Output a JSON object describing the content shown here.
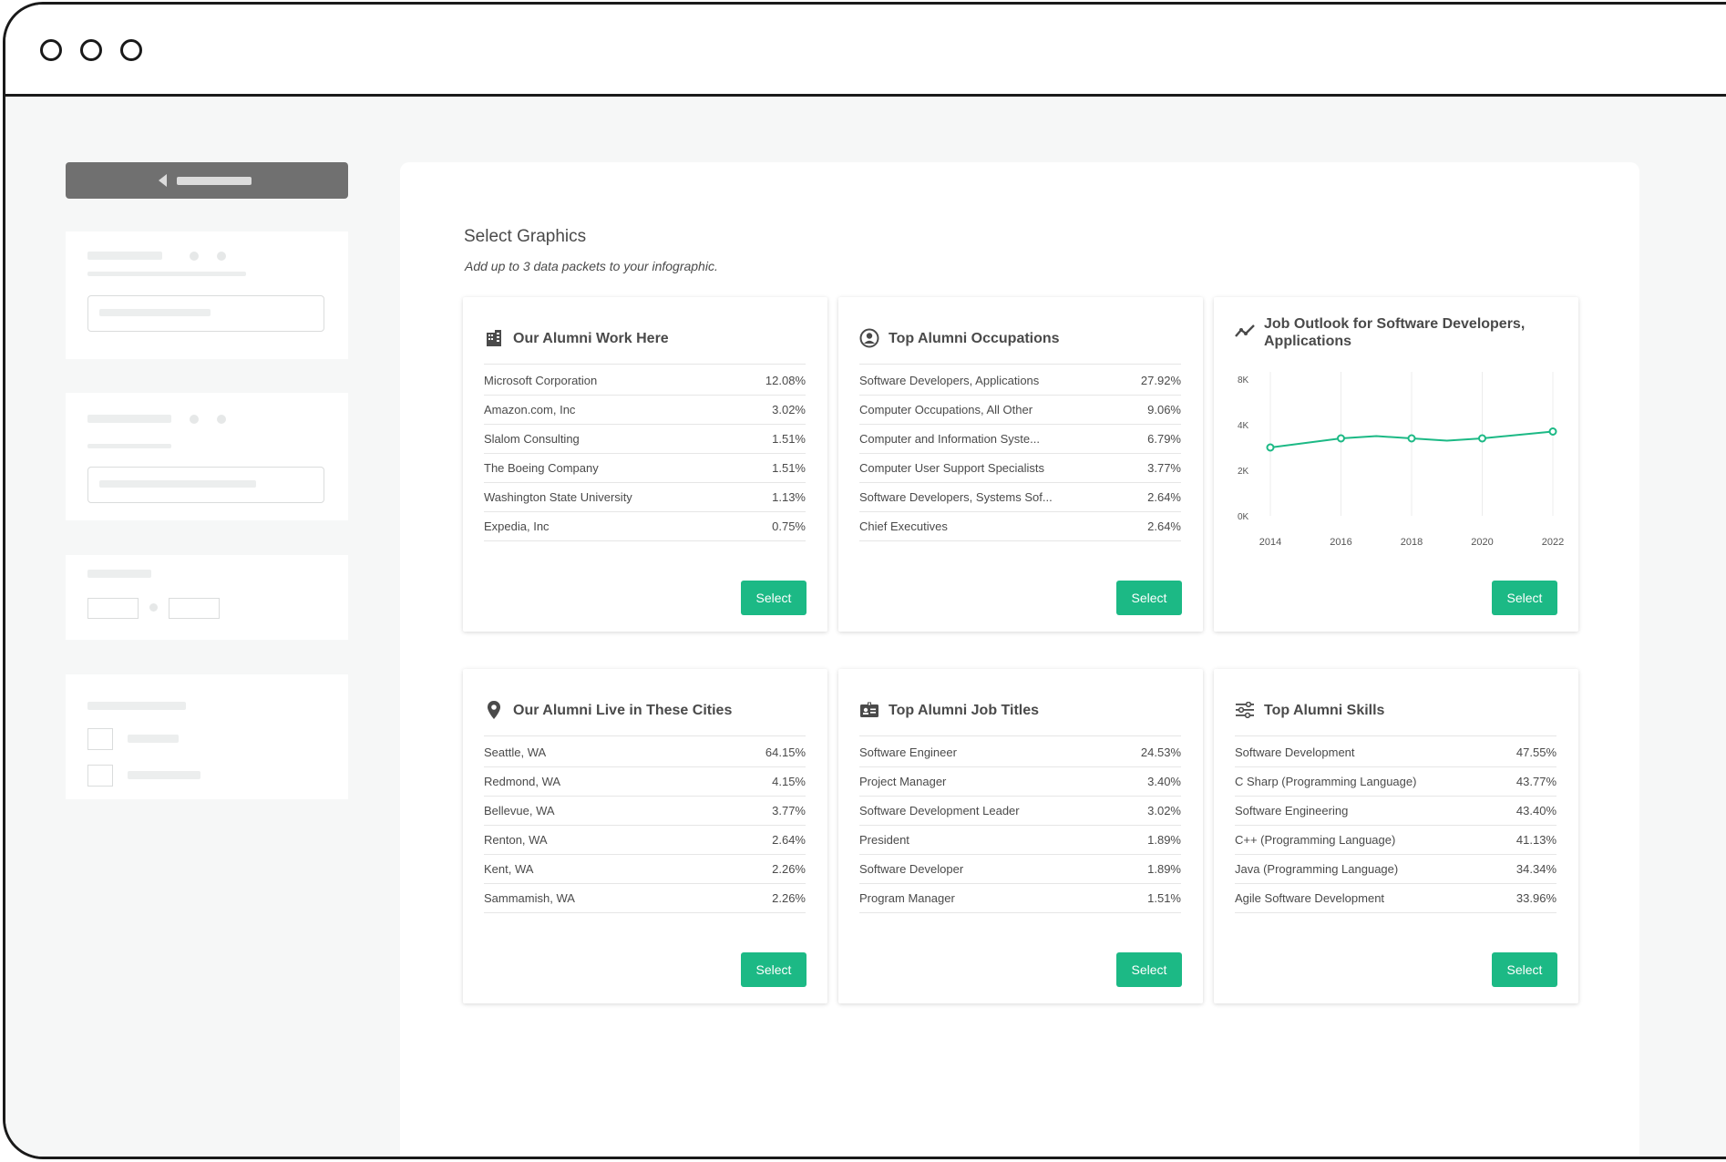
{
  "page": {
    "title": "Select Graphics",
    "subtitle": "Add up to 3 data packets to your infographic."
  },
  "accent_color": "#1cb985",
  "cards": [
    {
      "title": "Our Alumni Work Here",
      "icon": "building-icon",
      "rows": [
        {
          "label": "Microsoft Corporation",
          "value": "12.08%"
        },
        {
          "label": "Amazon.com, Inc",
          "value": "3.02%"
        },
        {
          "label": "Slalom Consulting",
          "value": "1.51%"
        },
        {
          "label": "The Boeing Company",
          "value": "1.51%"
        },
        {
          "label": "Washington State University",
          "value": "1.13%"
        },
        {
          "label": "Expedia, Inc",
          "value": "0.75%"
        }
      ],
      "button": "Select"
    },
    {
      "title": "Top Alumni Occupations",
      "icon": "person-circle-icon",
      "rows": [
        {
          "label": "Software Developers, Applications",
          "value": "27.92%"
        },
        {
          "label": "Computer Occupations, All Other",
          "value": "9.06%"
        },
        {
          "label": "Computer and Information Syste...",
          "value": "6.79%"
        },
        {
          "label": "Computer User Support Specialists",
          "value": "3.77%"
        },
        {
          "label": "Software Developers, Systems Sof...",
          "value": "2.64%"
        },
        {
          "label": "Chief Executives",
          "value": "2.64%"
        }
      ],
      "button": "Select"
    },
    {
      "title": "Job Outlook for Software Developers, Applications",
      "icon": "trend-line-icon",
      "button": "Select"
    },
    {
      "title": "Our Alumni Live in These Cities",
      "icon": "map-pin-icon",
      "rows": [
        {
          "label": "Seattle, WA",
          "value": "64.15%"
        },
        {
          "label": "Redmond, WA",
          "value": "4.15%"
        },
        {
          "label": "Bellevue, WA",
          "value": "3.77%"
        },
        {
          "label": "Renton, WA",
          "value": "2.64%"
        },
        {
          "label": "Kent, WA",
          "value": "2.26%"
        },
        {
          "label": "Sammamish, WA",
          "value": "2.26%"
        }
      ],
      "button": "Select"
    },
    {
      "title": "Top Alumni Job Titles",
      "icon": "id-badge-icon",
      "rows": [
        {
          "label": "Software Engineer",
          "value": "24.53%"
        },
        {
          "label": "Project Manager",
          "value": "3.40%"
        },
        {
          "label": "Software Development Leader",
          "value": "3.02%"
        },
        {
          "label": "President",
          "value": "1.89%"
        },
        {
          "label": "Software Developer",
          "value": "1.89%"
        },
        {
          "label": "Program Manager",
          "value": "1.51%"
        }
      ],
      "button": "Select"
    },
    {
      "title": "Top Alumni Skills",
      "icon": "sliders-icon",
      "rows": [
        {
          "label": "Software Development",
          "value": "47.55%"
        },
        {
          "label": "C Sharp (Programming Language)",
          "value": "43.77%"
        },
        {
          "label": "Software Engineering",
          "value": "43.40%"
        },
        {
          "label": "C++ (Programming Language)",
          "value": "41.13%"
        },
        {
          "label": "Java (Programming Language)",
          "value": "34.34%"
        },
        {
          "label": "Agile Software Development",
          "value": "33.96%"
        }
      ],
      "button": "Select"
    }
  ],
  "chart_data": {
    "type": "line",
    "title": "Job Outlook for Software Developers, Applications",
    "x": [
      2014,
      2016,
      2017,
      2018,
      2019,
      2020,
      2022
    ],
    "y": [
      3000,
      3400,
      3500,
      3400,
      3300,
      3400,
      3700
    ],
    "markers_at": [
      2014,
      2016,
      2018,
      2020,
      2022
    ],
    "x_ticks": [
      "2014",
      "2016",
      "2018",
      "2020",
      "2022"
    ],
    "y_ticks": [
      "0K",
      "2K",
      "4K",
      "8K"
    ],
    "xlabel": "",
    "ylabel": "",
    "line_color": "#1cb985",
    "grid": "vertical"
  }
}
